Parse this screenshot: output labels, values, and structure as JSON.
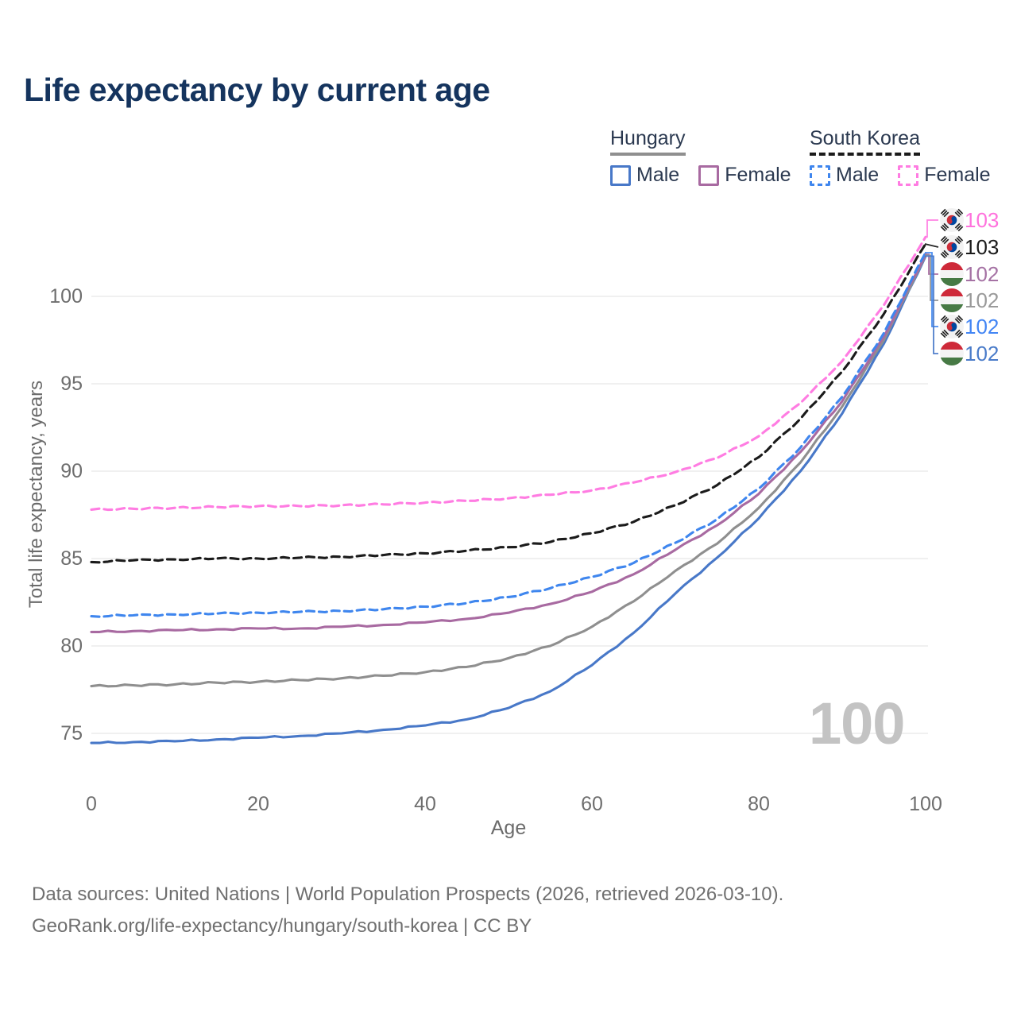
{
  "title": "Life expectancy by current age",
  "watermark": "100",
  "legend": {
    "groups": [
      {
        "country": "Hungary",
        "series_index": 3,
        "items": [
          {
            "label": "Male",
            "series_index": 5
          },
          {
            "label": "Female",
            "series_index": 2
          }
        ]
      },
      {
        "country": "South Korea",
        "series_index": 1,
        "items": [
          {
            "label": "Male",
            "series_index": 4
          },
          {
            "label": "Female",
            "series_index": 0
          }
        ]
      }
    ]
  },
  "footer": {
    "line1": "Data sources: United Nations | World Population Prospects (2026, retrieved 2026-03-10).",
    "line2": "GeoRank.org/life-expectancy/hungary/south-korea | CC BY"
  },
  "chart_data": {
    "type": "line",
    "title": "Life expectancy by current age",
    "xlabel": "Age",
    "ylabel": "Total life expectancy, years",
    "x": [
      0,
      5,
      10,
      15,
      20,
      25,
      30,
      35,
      40,
      45,
      50,
      55,
      60,
      65,
      70,
      75,
      80,
      85,
      90,
      95,
      100
    ],
    "xticks": [
      0,
      20,
      40,
      60,
      80,
      100
    ],
    "yticks": [
      75,
      80,
      85,
      90,
      95,
      100
    ],
    "xlim": [
      0,
      100
    ],
    "ylim": [
      73.5,
      104.5
    ],
    "grid": "horizontal",
    "legend_position": "top-right",
    "series": [
      {
        "id": "south-korea-female",
        "name": "South Korea — Female",
        "flag": "kr",
        "dash": true,
        "color": "#ff7ce2",
        "label_color": "#ff72dd",
        "end_label": "103",
        "values": [
          87.8,
          87.85,
          87.9,
          87.95,
          88.0,
          88.0,
          88.05,
          88.1,
          88.2,
          88.3,
          88.45,
          88.65,
          88.9,
          89.35,
          89.95,
          90.75,
          92.0,
          93.9,
          96.3,
          99.5,
          103.4
        ]
      },
      {
        "id": "south-korea-total",
        "name": "South Korea — Both sexes",
        "flag": "kr",
        "dash": true,
        "color": "#1b1b1b",
        "label_color": "#1b1b1b",
        "end_label": "103",
        "values": [
          84.8,
          84.9,
          84.95,
          85.0,
          85.0,
          85.05,
          85.1,
          85.2,
          85.3,
          85.45,
          85.65,
          85.95,
          86.45,
          87.1,
          88.05,
          89.2,
          90.8,
          93.0,
          95.7,
          99.0,
          103.0
        ]
      },
      {
        "id": "hungary-female",
        "name": "Hungary — Female",
        "flag": "hu",
        "dash": false,
        "color": "#a86aa1",
        "label_color": "#a572a4",
        "end_label": "102",
        "values": [
          80.8,
          80.85,
          80.9,
          80.95,
          81.0,
          81.0,
          81.1,
          81.2,
          81.35,
          81.55,
          81.9,
          82.4,
          83.1,
          84.1,
          85.5,
          86.9,
          88.7,
          91.1,
          94.0,
          97.7,
          102.4
        ]
      },
      {
        "id": "hungary-total",
        "name": "Hungary — Both sexes",
        "flag": "hu",
        "dash": false,
        "color": "#8f8f8f",
        "label_color": "#9a9a9a",
        "end_label": "102",
        "values": [
          77.7,
          77.75,
          77.8,
          77.9,
          77.95,
          78.05,
          78.15,
          78.3,
          78.5,
          78.8,
          79.3,
          80.0,
          81.1,
          82.55,
          84.3,
          85.85,
          87.9,
          90.5,
          93.7,
          97.5,
          102.35
        ]
      },
      {
        "id": "south-korea-male",
        "name": "South Korea — Male",
        "flag": "kr",
        "dash": true,
        "color": "#3f86ee",
        "label_color": "#4285f4",
        "end_label": "102",
        "values": [
          81.7,
          81.75,
          81.8,
          81.85,
          81.9,
          81.95,
          82.0,
          82.1,
          82.25,
          82.45,
          82.8,
          83.3,
          83.95,
          84.75,
          85.9,
          87.25,
          89.0,
          91.35,
          94.25,
          97.9,
          102.5
        ]
      },
      {
        "id": "hungary-male",
        "name": "Hungary — Male",
        "flag": "hu",
        "dash": false,
        "color": "#4878c8",
        "label_color": "#4a7bc9",
        "end_label": "102",
        "values": [
          74.45,
          74.5,
          74.55,
          74.65,
          74.75,
          74.85,
          75.0,
          75.2,
          75.45,
          75.8,
          76.45,
          77.4,
          78.9,
          80.75,
          83.0,
          85.05,
          87.3,
          90.0,
          93.3,
          97.3,
          102.3
        ]
      }
    ]
  }
}
